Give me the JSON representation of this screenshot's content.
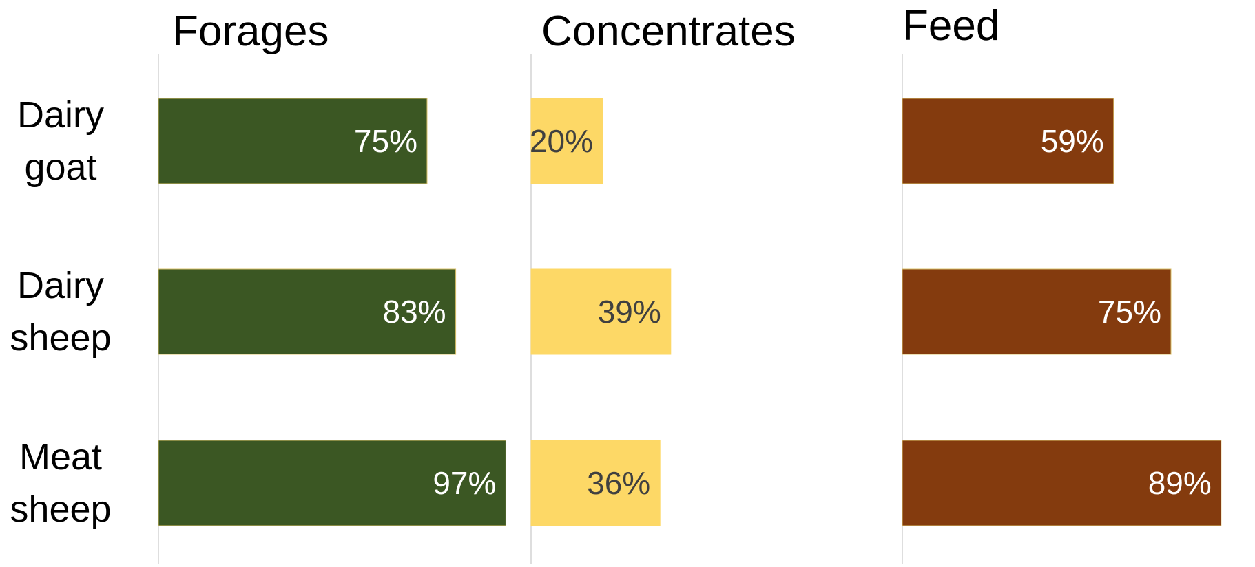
{
  "chart_data": {
    "type": "bar",
    "orientation": "horizontal",
    "categories": [
      [
        "Dairy",
        "goat"
      ],
      [
        "Dairy",
        "sheep"
      ],
      [
        "Meat",
        "sheep"
      ]
    ],
    "xlim": [
      0,
      100
    ],
    "grid": false,
    "legend": "none",
    "value_suffix": "%",
    "panels": [
      {
        "title": "Forages",
        "values": [
          75,
          83,
          97
        ],
        "color": "#3b5723",
        "label_color": "#ffffff"
      },
      {
        "title": "Concentrates",
        "values": [
          20,
          39,
          36
        ],
        "color": "#fdd866",
        "label_color": "#404040"
      },
      {
        "title": "Feed",
        "values": [
          59,
          75,
          89
        ],
        "color": "#843b0e",
        "label_color": "#ffffff"
      }
    ]
  }
}
